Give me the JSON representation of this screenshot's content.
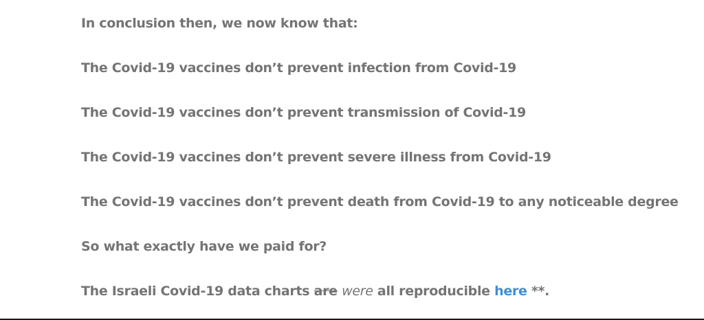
{
  "article": {
    "paragraphs": [
      "In conclusion then, we now know that:",
      "The Covid-19 vaccines don’t prevent infection from Covid-19",
      "The Covid-19 vaccines don’t prevent transmission of Covid-19",
      "The Covid-19 vaccines don’t prevent severe illness from Covid-19",
      "The Covid-19 vaccines don’t prevent death from Covid-19 to any noticeable degree",
      "So what exactly have we paid for?"
    ],
    "final": {
      "lead": "The Israeli Covid-19 data charts ",
      "struck": "are",
      "space": " ",
      "emphasis": "were",
      "middle": " all reproducible ",
      "link_text": "here",
      "tail": " **."
    }
  },
  "colors": {
    "text": "#747474",
    "link": "#3d8fd8",
    "rule": "#1a1a1a"
  }
}
